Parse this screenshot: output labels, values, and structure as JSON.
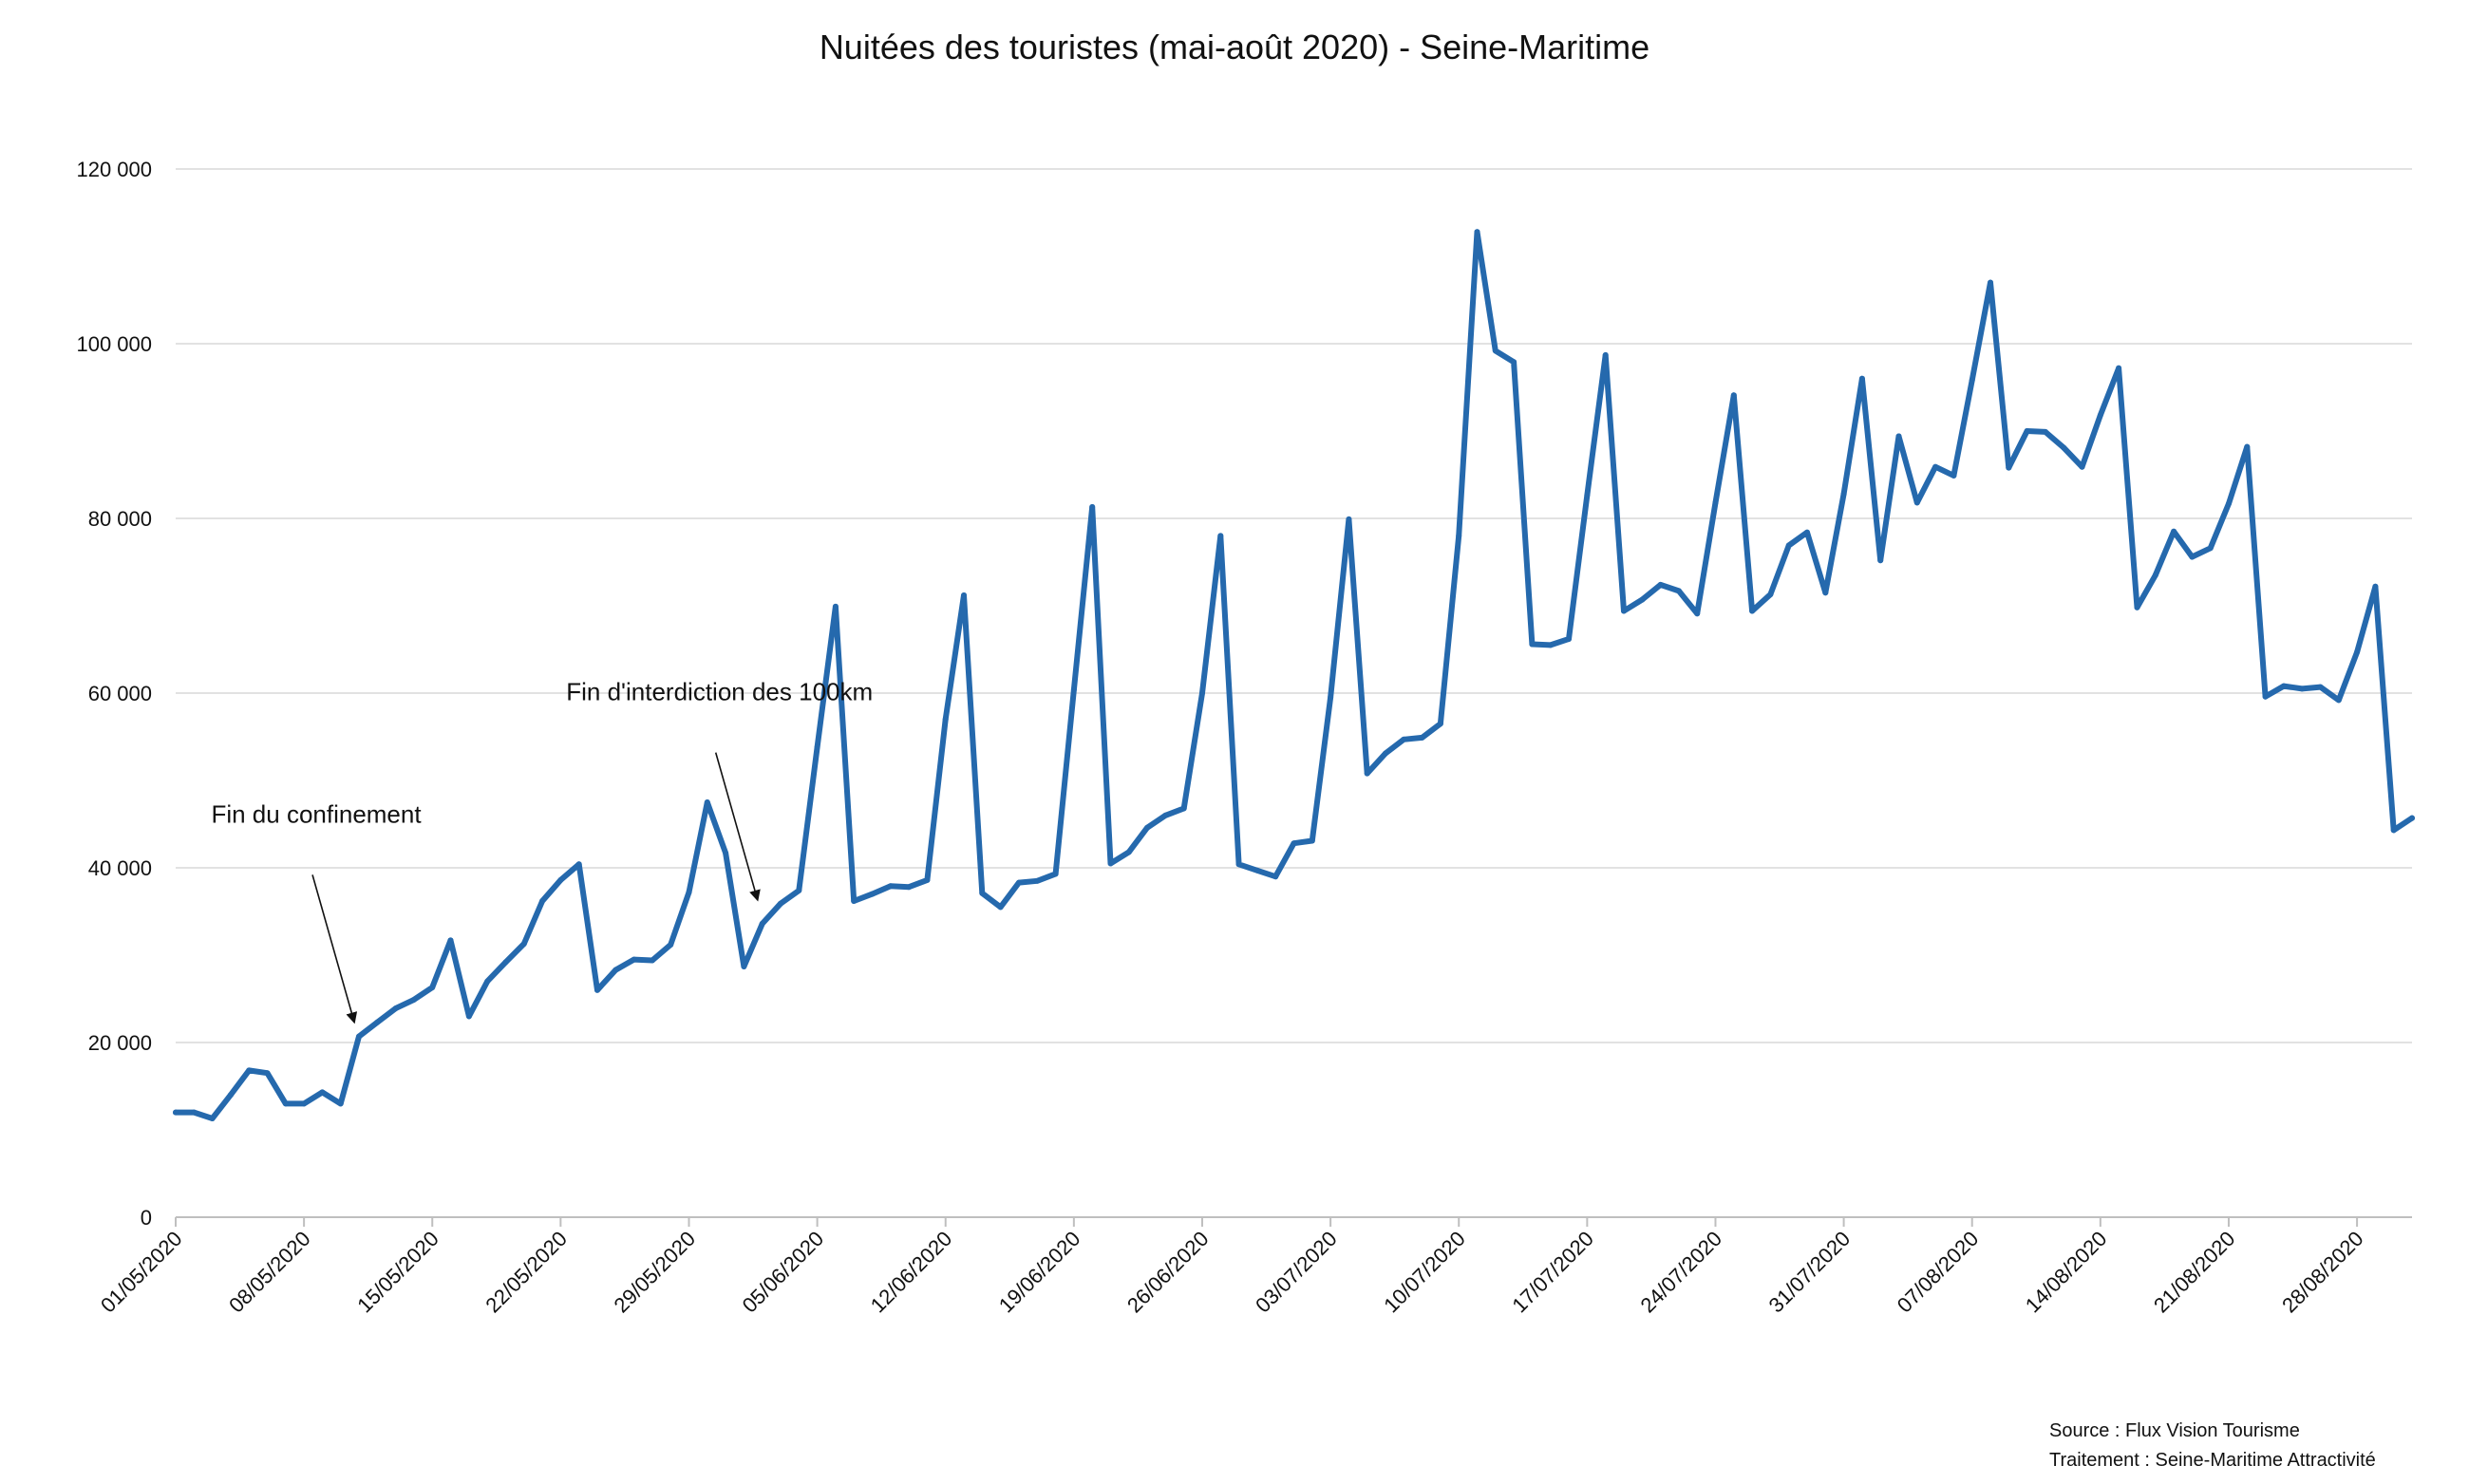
{
  "chart_data": {
    "type": "line",
    "title": "Nuitées des touristes (mai-août 2020) - Seine-Maritime",
    "xlabel": "",
    "ylabel": "",
    "ylim": [
      0,
      120000
    ],
    "y_ticks": [
      0,
      20000,
      40000,
      60000,
      80000,
      100000,
      120000
    ],
    "y_tick_labels": [
      "0",
      "20 000",
      "40 000",
      "60 000",
      "80 000",
      "100 000",
      "120 000"
    ],
    "x_start": "01/05/2020",
    "x_end": "31/08/2020",
    "x_ticks": [
      "01/05/2020",
      "08/05/2020",
      "15/05/2020",
      "22/05/2020",
      "29/05/2020",
      "05/06/2020",
      "12/06/2020",
      "19/06/2020",
      "26/06/2020",
      "03/07/2020",
      "10/07/2020",
      "17/07/2020",
      "24/07/2020",
      "31/07/2020",
      "07/08/2020",
      "14/08/2020",
      "21/08/2020",
      "28/08/2020"
    ],
    "grid": true,
    "legend": "none",
    "series": [
      {
        "color": "#2569ad",
        "values": [
          12000,
          12000,
          11300,
          14000,
          16800,
          16500,
          13000,
          13000,
          14300,
          13000,
          20700,
          22300,
          23900,
          24900,
          26300,
          31700,
          23000,
          27000,
          29200,
          31300,
          36200,
          38600,
          40400,
          26000,
          28300,
          29500,
          29400,
          31200,
          37200,
          47500,
          41700,
          28700,
          33600,
          35900,
          37400,
          53800,
          69900,
          36200,
          37000,
          37900,
          37800,
          38600,
          57000,
          71200,
          37100,
          35500,
          38300,
          38500,
          39300,
          60400,
          81300,
          40500,
          41800,
          44600,
          46000,
          46800,
          60000,
          78000,
          40400,
          39700,
          39000,
          42800,
          43100,
          59500,
          79900,
          50800,
          53100,
          54700,
          54900,
          56500,
          78000,
          112800,
          99200,
          97900,
          65600,
          65500,
          66200,
          82700,
          98700,
          69400,
          70700,
          72400,
          71700,
          69100,
          81800,
          94100,
          69400,
          71300,
          76900,
          78400,
          71500,
          82800,
          96000,
          75200,
          89400,
          81800,
          85900,
          84900,
          95800,
          107000,
          85800,
          90000,
          89900,
          88100,
          85900,
          91800,
          97200,
          69800,
          73500,
          78500,
          75600,
          76600,
          81700,
          88200,
          59600,
          60800,
          60500,
          60700,
          59200,
          64700,
          72200,
          44300,
          45700
        ]
      }
    ],
    "annotations": [
      {
        "text": "Fin du confinement",
        "date": "11/05/2020",
        "value": 23000
      },
      {
        "text": "Fin d'interdiction des 100km",
        "date": "02/06/2020",
        "value": 37000
      }
    ]
  },
  "source": {
    "line1": "Source : Flux Vision Tourisme",
    "line2": "Traitement : Seine-Maritime Attractivité"
  }
}
